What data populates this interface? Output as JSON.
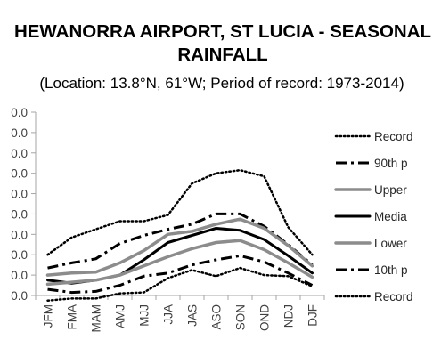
{
  "chart_data": {
    "type": "line",
    "title_line1": "HEWANORRA AIRPORT, ST LUCIA - SEASONAL",
    "title_line2": "RAINFALL",
    "subtitle": "(Location: 13.8°N, 61°W; Period of record: 1973-2014)",
    "categories": [
      "JFM",
      "FMA",
      "MAM",
      "AMJ",
      "MJJ",
      "JJA",
      "JAS",
      "ASO",
      "SON",
      "OND",
      "NDJ",
      "DJF"
    ],
    "y_tick_labels": [
      "0.0",
      "0.0",
      "0.0",
      "0.0",
      "0.0",
      "0.0",
      "0.0",
      "0.0",
      "0.0",
      "0.0"
    ],
    "ylim": [
      0,
      9
    ],
    "grid": false,
    "legend_position": "right",
    "series": [
      {
        "name": "Record",
        "style": "dotted",
        "color": "#000000",
        "values": [
          2.0,
          2.85,
          3.25,
          3.65,
          3.65,
          3.95,
          5.5,
          6.0,
          6.15,
          5.85,
          3.35,
          2.0
        ]
      },
      {
        "name": "90th p",
        "style": "dashdot",
        "color": "#000000",
        "values": [
          1.35,
          1.6,
          1.8,
          2.55,
          2.95,
          3.25,
          3.5,
          4.0,
          4.0,
          3.4,
          2.5,
          1.5
        ]
      },
      {
        "name": "Upper",
        "style": "solid-thick",
        "color": "#8c8c8c",
        "values": [
          1.0,
          1.1,
          1.15,
          1.6,
          2.2,
          3.0,
          3.15,
          3.5,
          3.75,
          3.3,
          2.45,
          1.45
        ]
      },
      {
        "name": "Media",
        "style": "solid",
        "color": "#000000",
        "values": [
          0.75,
          0.6,
          0.75,
          1.0,
          1.75,
          2.6,
          2.95,
          3.3,
          3.2,
          2.75,
          1.95,
          1.1
        ]
      },
      {
        "name": "Lower",
        "style": "solid-thick",
        "color": "#8c8c8c",
        "values": [
          0.55,
          0.65,
          0.75,
          1.0,
          1.45,
          1.9,
          2.3,
          2.6,
          2.7,
          2.25,
          1.6,
          0.9
        ]
      },
      {
        "name": "10th p",
        "style": "dashdot",
        "color": "#000000",
        "values": [
          0.3,
          0.15,
          0.2,
          0.5,
          0.95,
          1.1,
          1.5,
          1.75,
          1.95,
          1.65,
          1.1,
          0.5
        ]
      },
      {
        "name": "Record",
        "style": "dotted",
        "color": "#000000",
        "values": [
          -0.25,
          -0.15,
          -0.15,
          0.1,
          0.15,
          0.85,
          1.25,
          0.95,
          1.35,
          1.0,
          0.95,
          0.45
        ]
      }
    ]
  }
}
